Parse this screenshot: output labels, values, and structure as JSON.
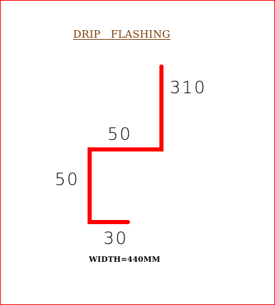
{
  "title": "DRIP   FLASHING",
  "dimensions": {
    "top_vertical": "310",
    "top_horizontal": "50",
    "left_vertical": "50",
    "bottom_horizontal": "30"
  },
  "width_label": "WIDTH=440MM",
  "colors": {
    "border": "#ff0000",
    "profile_line": "#ff0000",
    "title": "#7a3d08",
    "text": "#000000"
  }
}
